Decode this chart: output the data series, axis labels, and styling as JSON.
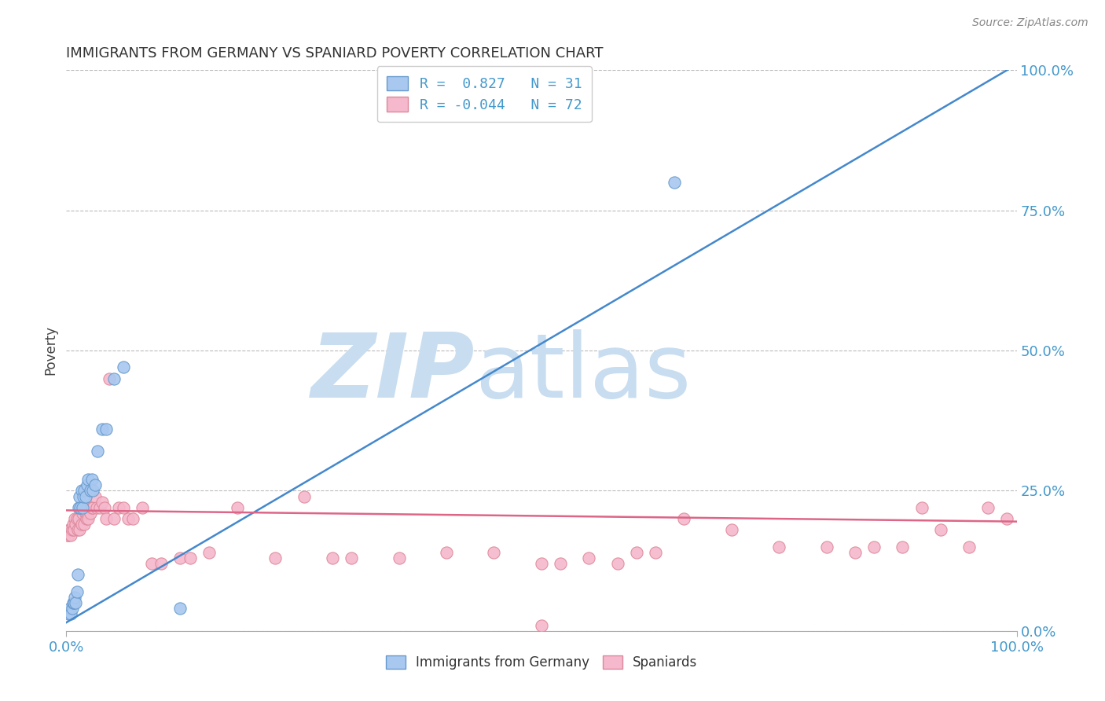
{
  "title": "IMMIGRANTS FROM GERMANY VS SPANIARD POVERTY CORRELATION CHART",
  "source": "Source: ZipAtlas.com",
  "ylabel": "Poverty",
  "ytick_labels": [
    "0.0%",
    "25.0%",
    "50.0%",
    "75.0%",
    "100.0%"
  ],
  "ytick_values": [
    0,
    0.25,
    0.5,
    0.75,
    1.0
  ],
  "legend_r_germany": "0.827",
  "legend_n_germany": "31",
  "legend_r_spain": "-0.044",
  "legend_n_spain": "72",
  "germany_color": "#a8c8f0",
  "germany_edge": "#6699cc",
  "spain_color": "#f5b8cc",
  "spain_edge": "#dd8899",
  "line_germany_color": "#4488cc",
  "line_spain_color": "#dd6688",
  "watermark_zip_color": "#c8ddf0",
  "watermark_atlas_color": "#c8ddf0",
  "background_color": "#ffffff",
  "grid_color": "#bbbbbb",
  "blue_text_color": "#4499cc",
  "title_color": "#333333",
  "source_color": "#888888",
  "germany_line_x0": 0.0,
  "germany_line_y0": 0.015,
  "germany_line_x1": 1.0,
  "germany_line_y1": 1.01,
  "spain_line_x0": 0.0,
  "spain_line_y0": 0.215,
  "spain_line_x1": 1.0,
  "spain_line_y1": 0.195,
  "germany_scatter_x": [
    0.002,
    0.004,
    0.005,
    0.006,
    0.007,
    0.008,
    0.009,
    0.01,
    0.011,
    0.012,
    0.013,
    0.014,
    0.015,
    0.016,
    0.017,
    0.018,
    0.019,
    0.02,
    0.022,
    0.023,
    0.025,
    0.027,
    0.028,
    0.03,
    0.033,
    0.038,
    0.042,
    0.05,
    0.06,
    0.12,
    0.64
  ],
  "germany_scatter_y": [
    0.03,
    0.04,
    0.03,
    0.04,
    0.05,
    0.05,
    0.06,
    0.05,
    0.07,
    0.1,
    0.22,
    0.24,
    0.22,
    0.25,
    0.22,
    0.24,
    0.25,
    0.24,
    0.26,
    0.27,
    0.25,
    0.27,
    0.25,
    0.26,
    0.32,
    0.36,
    0.36,
    0.45,
    0.47,
    0.04,
    0.8
  ],
  "spain_scatter_x": [
    0.001,
    0.002,
    0.003,
    0.004,
    0.005,
    0.006,
    0.007,
    0.008,
    0.009,
    0.01,
    0.011,
    0.012,
    0.013,
    0.014,
    0.015,
    0.016,
    0.017,
    0.018,
    0.019,
    0.02,
    0.021,
    0.022,
    0.023,
    0.024,
    0.025,
    0.027,
    0.028,
    0.03,
    0.032,
    0.035,
    0.038,
    0.04,
    0.042,
    0.045,
    0.05,
    0.055,
    0.06,
    0.065,
    0.07,
    0.08,
    0.09,
    0.1,
    0.12,
    0.13,
    0.15,
    0.18,
    0.22,
    0.25,
    0.28,
    0.3,
    0.35,
    0.4,
    0.45,
    0.5,
    0.52,
    0.55,
    0.58,
    0.6,
    0.62,
    0.65,
    0.7,
    0.75,
    0.8,
    0.83,
    0.85,
    0.88,
    0.9,
    0.92,
    0.95,
    0.97,
    0.99,
    0.5
  ],
  "spain_scatter_y": [
    0.17,
    0.17,
    0.18,
    0.18,
    0.17,
    0.18,
    0.19,
    0.18,
    0.2,
    0.19,
    0.2,
    0.18,
    0.2,
    0.18,
    0.22,
    0.19,
    0.21,
    0.22,
    0.19,
    0.21,
    0.2,
    0.21,
    0.2,
    0.22,
    0.21,
    0.22,
    0.22,
    0.24,
    0.22,
    0.22,
    0.23,
    0.22,
    0.2,
    0.45,
    0.2,
    0.22,
    0.22,
    0.2,
    0.2,
    0.22,
    0.12,
    0.12,
    0.13,
    0.13,
    0.14,
    0.22,
    0.13,
    0.24,
    0.13,
    0.13,
    0.13,
    0.14,
    0.14,
    0.12,
    0.12,
    0.13,
    0.12,
    0.14,
    0.14,
    0.2,
    0.18,
    0.15,
    0.15,
    0.14,
    0.15,
    0.15,
    0.22,
    0.18,
    0.15,
    0.22,
    0.2,
    0.01
  ],
  "xlim": [
    0,
    1.0
  ],
  "ylim": [
    0.0,
    1.0
  ]
}
